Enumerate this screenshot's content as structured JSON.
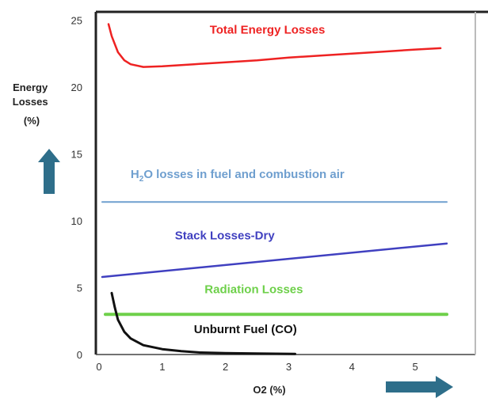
{
  "chart_data": {
    "type": "line",
    "xlabel": "O2 (%)",
    "ylabel": [
      "Energy",
      "Losses",
      "(%)"
    ],
    "xlim": [
      0,
      5.7
    ],
    "ylim": [
      0,
      25.5
    ],
    "x_ticks": [
      0,
      1,
      2,
      3,
      4,
      5
    ],
    "y_ticks": [
      0,
      5,
      10,
      15,
      20,
      25
    ],
    "grid": false,
    "legend": "none",
    "colors": {
      "total": "#ee2222",
      "h2o": "#6f9fcf",
      "stack": "#4040c0",
      "radiation": "#6ed04a",
      "unburnt": "#111111",
      "arrow": "#2e6e8a"
    },
    "series": [
      {
        "key": "total",
        "x": [
          0.15,
          0.2,
          0.3,
          0.4,
          0.5,
          0.7,
          1.0,
          1.5,
          2.0,
          2.5,
          3.0,
          3.5,
          4.0,
          4.5,
          5.0,
          5.4
        ],
        "y": [
          24.7,
          23.8,
          22.6,
          22.0,
          21.7,
          21.5,
          21.55,
          21.7,
          21.85,
          22.0,
          22.2,
          22.35,
          22.5,
          22.65,
          22.8,
          22.9
        ]
      },
      {
        "key": "h2o",
        "x": [
          0.05,
          5.5
        ],
        "y": [
          11.4,
          11.4
        ]
      },
      {
        "key": "stack",
        "x": [
          0.05,
          5.5
        ],
        "y": [
          5.8,
          8.3
        ]
      },
      {
        "key": "radiation",
        "x": [
          0.1,
          5.5
        ],
        "y": [
          3.0,
          3.0
        ]
      },
      {
        "key": "unburnt",
        "x": [
          0.2,
          0.25,
          0.3,
          0.4,
          0.5,
          0.7,
          1.0,
          1.3,
          1.6,
          2.0,
          2.5,
          3.1
        ],
        "y": [
          4.6,
          3.5,
          2.6,
          1.7,
          1.2,
          0.7,
          0.4,
          0.25,
          0.15,
          0.1,
          0.07,
          0.05
        ]
      }
    ],
    "annotations": [
      {
        "key": "total",
        "text": "Total Energy Losses",
        "x": 1.75,
        "y": 24.0
      },
      {
        "key": "h2o",
        "text_main": "H",
        "sub": "2",
        "text_rest": "O losses in fuel and combustion air",
        "x": 0.5,
        "y": 13.2
      },
      {
        "key": "stack",
        "text": "Stack Losses-Dry",
        "x": 1.2,
        "y": 8.6
      },
      {
        "key": "radiation",
        "text": "Radiation Losses",
        "x": 1.67,
        "y": 4.6
      },
      {
        "key": "unburnt",
        "text": "Unburnt Fuel (CO)",
        "x": 1.5,
        "y": 1.6
      }
    ]
  }
}
